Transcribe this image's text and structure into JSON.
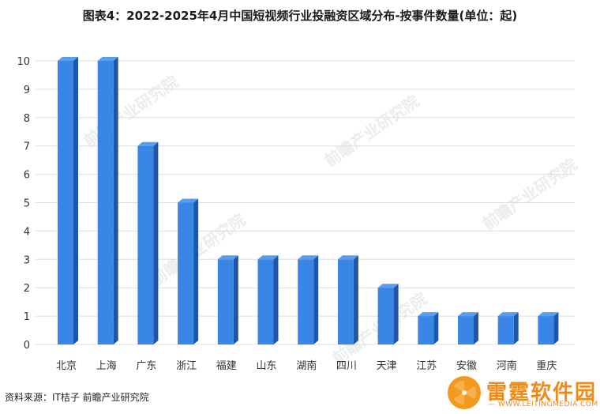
{
  "title": "图表4：2022-2025年4月中国短视频行业投融资区域分布-按事件数量(单位：起)",
  "source": "资料来源：IT桔子 前瞻产业研究院",
  "watermark_text": "前瞻产业研究院",
  "logo": {
    "name": "雷霆软件园",
    "url": "— WWW.LEITINGMEDIA.COM —"
  },
  "colors": {
    "bar_front": "#3a86e6",
    "bar_side": "#1f57a8",
    "bar_top": "#5a9cf0",
    "grid": "#dddddd",
    "logo_orange": "#f08a16"
  },
  "chart_data": {
    "type": "bar",
    "title": "图表4：2022-2025年4月中国短视频行业投融资区域分布-按事件数量(单位：起)",
    "categories": [
      "北京",
      "上海",
      "广东",
      "浙江",
      "福建",
      "山东",
      "湖南",
      "四川",
      "天津",
      "江苏",
      "安徽",
      "河南",
      "重庆"
    ],
    "values": [
      10,
      10,
      7,
      5,
      3,
      3,
      3,
      3,
      2,
      1,
      1,
      1,
      1
    ],
    "yticks": [
      0,
      1,
      2,
      3,
      4,
      5,
      6,
      7,
      8,
      9,
      10
    ],
    "ylim": [
      0,
      10
    ],
    "grid": true,
    "legend": "none"
  }
}
